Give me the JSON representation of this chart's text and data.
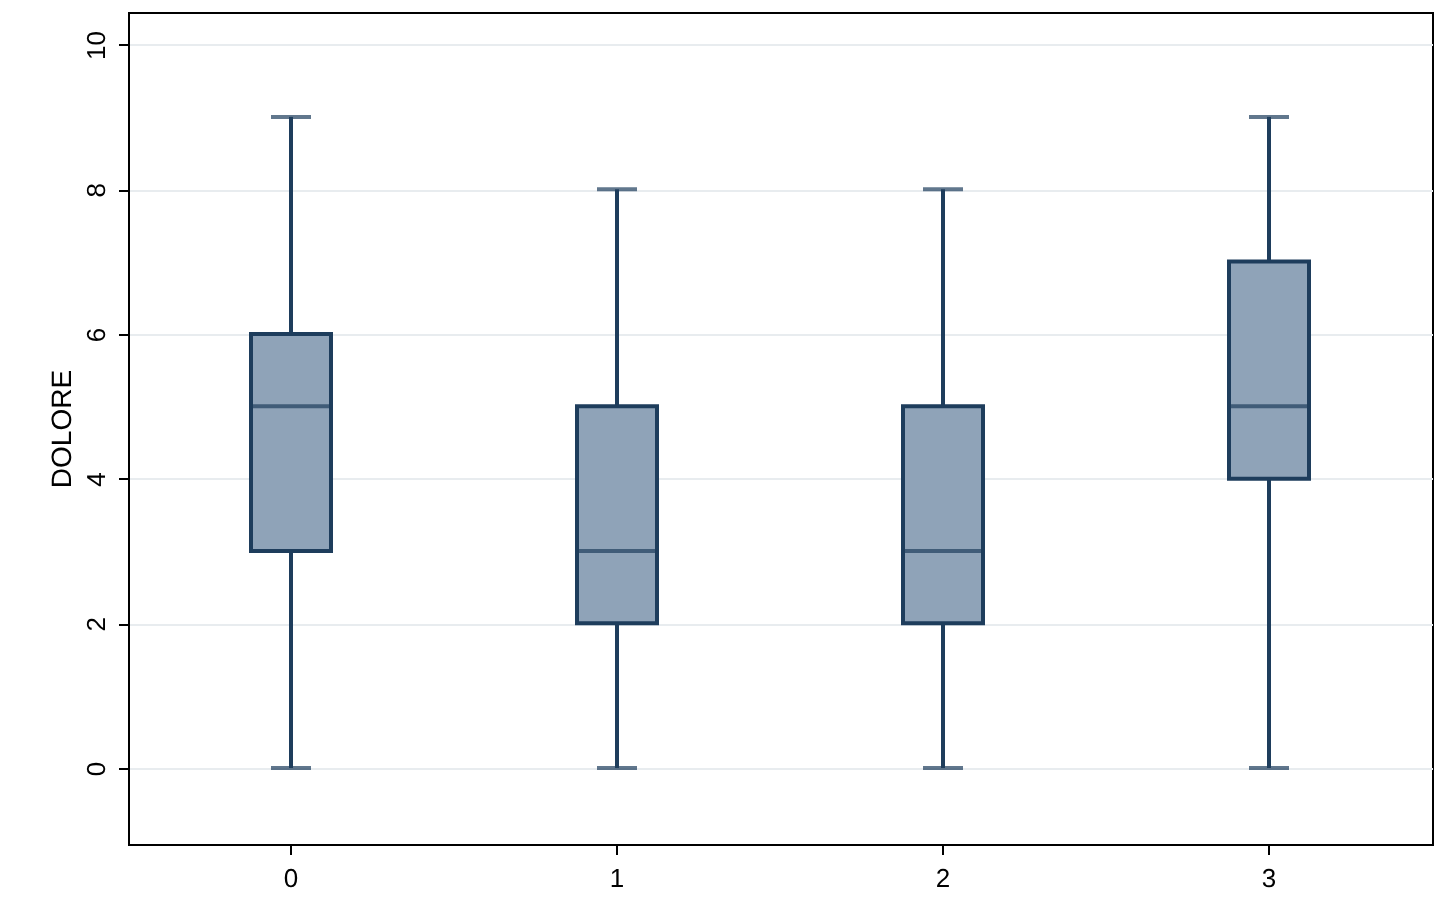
{
  "chart_data": {
    "type": "box",
    "ylabel": "DOLORE",
    "categories": [
      "0",
      "1",
      "2",
      "3"
    ],
    "boxes": [
      {
        "low": 0,
        "q1": 3,
        "median": 5,
        "q3": 6,
        "high": 9
      },
      {
        "low": 0,
        "q1": 2,
        "median": 3,
        "q3": 5,
        "high": 8
      },
      {
        "low": 0,
        "q1": 2,
        "median": 3,
        "q3": 5,
        "high": 8
      },
      {
        "low": 0,
        "q1": 4,
        "median": 5,
        "q3": 7,
        "high": 9
      }
    ],
    "color": "#8fa3b8",
    "ylim": [
      -1.05,
      10.45
    ],
    "yticks": [
      0,
      2,
      4,
      6,
      8,
      10
    ],
    "grid": "y"
  }
}
